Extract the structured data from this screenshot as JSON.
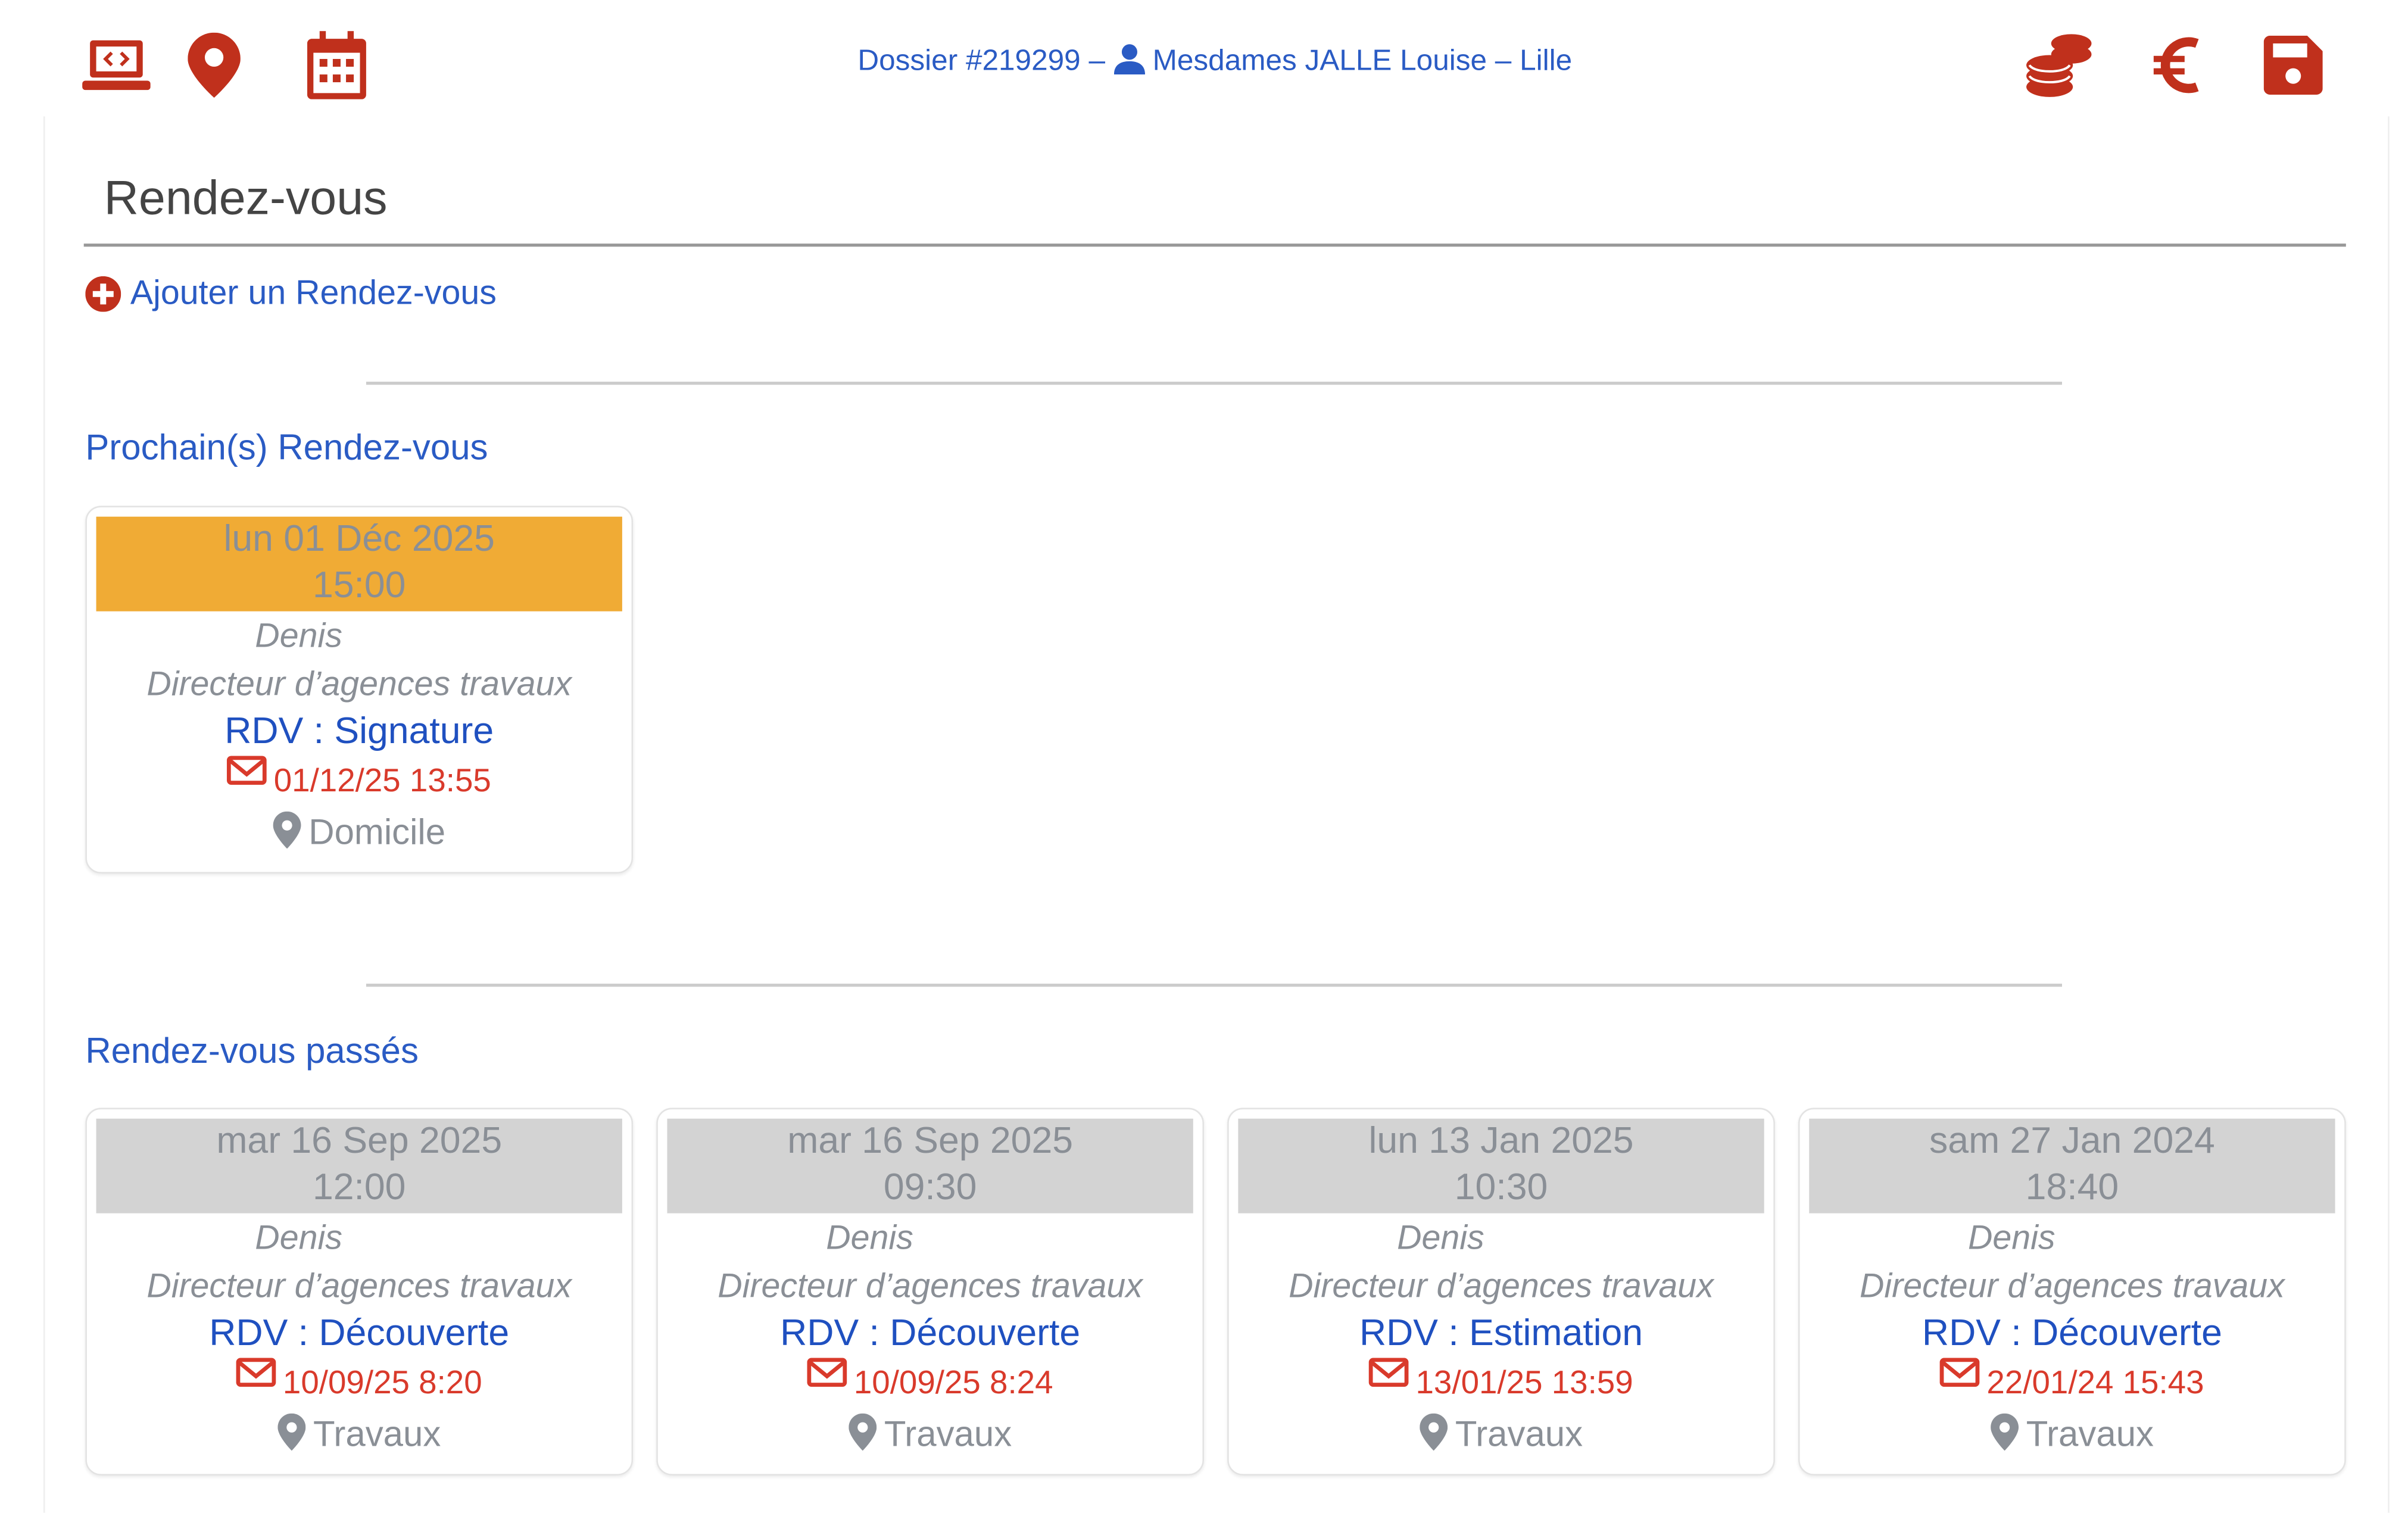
{
  "header": {
    "title": "Dossier #219299 – ",
    "client": "Mesdames JALLE Louise – Lille",
    "left_icons": [
      "laptop-code-icon",
      "map-marker-icon",
      "calendar-icon"
    ],
    "right_icons": [
      "coins-icon",
      "euro-icon",
      "save-icon"
    ],
    "accent_color": "#c0301c",
    "link_color": "#2a5bc4"
  },
  "page": {
    "title": "Rendez-vous",
    "add_label": "Ajouter un Rendez-vous",
    "upcoming_title": "Prochain(s) Rendez-vous",
    "past_title": "Rendez-vous passés"
  },
  "upcoming": [
    {
      "date": "lun 01 Déc 2025",
      "time": "15:00",
      "person": "Denis",
      "role": "Directeur d’agences travaux",
      "type": "RDV : Signature",
      "sent": "01/12/25 13:55",
      "place": "Domicile",
      "band_color": "#f0ab35"
    }
  ],
  "past": [
    {
      "date": "mar 16 Sep 2025",
      "time": "12:00",
      "person": "Denis",
      "role": "Directeur d’agences travaux",
      "type": "RDV : Découverte",
      "sent": "10/09/25 8:20",
      "place": "Travaux"
    },
    {
      "date": "mar 16 Sep 2025",
      "time": "09:30",
      "person": "Denis",
      "role": "Directeur d’agences travaux",
      "type": "RDV : Découverte",
      "sent": "10/09/25 8:24",
      "place": "Travaux"
    },
    {
      "date": "lun 13 Jan 2025",
      "time": "10:30",
      "person": "Denis",
      "role": "Directeur d’agences travaux",
      "type": "RDV : Estimation",
      "sent": "13/01/25 13:59",
      "place": "Travaux"
    },
    {
      "date": "sam 27 Jan 2024",
      "time": "18:40",
      "person": "Denis",
      "role": "Directeur d’agences travaux",
      "type": "RDV : Découverte",
      "sent": "22/01/24 15:43",
      "place": "Travaux"
    }
  ]
}
